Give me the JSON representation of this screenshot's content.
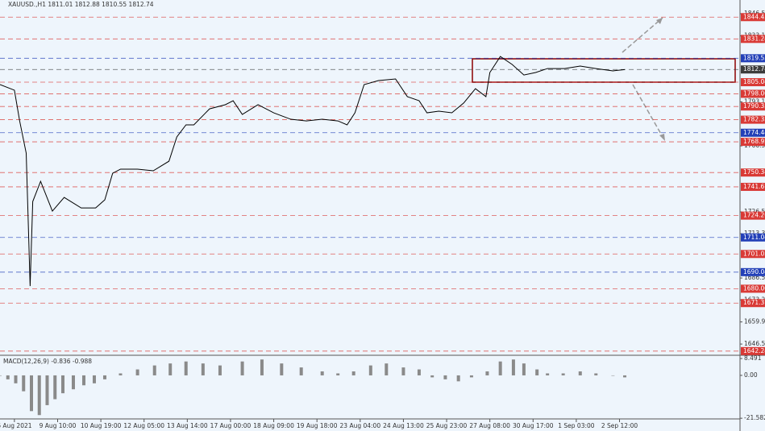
{
  "chart_data": [
    {
      "type": "line",
      "title": "XAUUSD.,H1  1811.01 1812.88 1810.55 1812.74",
      "color": "#000000",
      "x": [
        0,
        11,
        15,
        20,
        23,
        25,
        31,
        40,
        49,
        62,
        73,
        80,
        86,
        92,
        105,
        117,
        129,
        135,
        142,
        148,
        160,
        172,
        178,
        185,
        197,
        209,
        222,
        234,
        246,
        258,
        265,
        271,
        278,
        289,
        302,
        311,
        320,
        326,
        335,
        345,
        354,
        363,
        371,
        374,
        382,
        391,
        400,
        409,
        418,
        431,
        443,
        455,
        468,
        477
      ],
      "values": [
        1803.6,
        1800.2,
        1781.6,
        1762.1,
        1681.6,
        1732.8,
        1745.0,
        1727.0,
        1735.3,
        1728.9,
        1728.9,
        1733.8,
        1749.9,
        1752.4,
        1752.4,
        1751.4,
        1757.2,
        1771.9,
        1779.2,
        1779.2,
        1788.9,
        1791.4,
        1793.8,
        1785.5,
        1791.4,
        1786.5,
        1782.6,
        1781.6,
        1782.6,
        1781.6,
        1779.2,
        1786.5,
        1803.6,
        1806.0,
        1807.0,
        1796.3,
        1793.8,
        1786.5,
        1787.5,
        1786.5,
        1792.4,
        1801.1,
        1796.3,
        1810.9,
        1820.6,
        1815.8,
        1809.4,
        1810.9,
        1813.3,
        1813.3,
        1814.8,
        1813.3,
        1811.9,
        1812.7
      ],
      "xlim": [
        0,
        565
      ],
      "ylim": [
        1640.2,
        1854.8
      ],
      "xticks": [
        {
          "value": 11,
          "label": "6 Aug 2021"
        },
        {
          "value": 44,
          "label": "9 Aug 10:00"
        },
        {
          "value": 77,
          "label": "10 Aug 19:00"
        },
        {
          "value": 110,
          "label": "12 Aug 05:00"
        },
        {
          "value": 143,
          "label": "13 Aug 14:00"
        },
        {
          "value": 176,
          "label": "17 Aug 00:00"
        },
        {
          "value": 209,
          "label": "18 Aug 09:00"
        },
        {
          "value": 242,
          "label": "19 Aug 18:00"
        },
        {
          "value": 275,
          "label": "23 Aug 04:00"
        },
        {
          "value": 308,
          "label": "24 Aug 13:00"
        },
        {
          "value": 341,
          "label": "25 Aug 23:00"
        },
        {
          "value": 374,
          "label": "27 Aug 08:00"
        },
        {
          "value": 407,
          "label": "30 Aug 17:00"
        },
        {
          "value": 440,
          "label": "1 Sep 03:00"
        },
        {
          "value": 473,
          "label": "2 Sep 12:00"
        }
      ],
      "yticks": [
        {
          "value": 1846.5,
          "label": "1846.50"
        },
        {
          "value": 1833.1,
          "label": "1833.10"
        },
        {
          "value": 1793.1,
          "label": "1793.10"
        },
        {
          "value": 1766.5,
          "label": "1766.50"
        },
        {
          "value": 1726.5,
          "label": "1726.50"
        },
        {
          "value": 1713.3,
          "label": "1713.30"
        },
        {
          "value": 1686.5,
          "label": "1686.50"
        },
        {
          "value": 1673.2,
          "label": "1673.20"
        },
        {
          "value": 1659.9,
          "label": "1659.90"
        },
        {
          "value": 1646.5,
          "label": "1646.50"
        }
      ],
      "levels": [
        {
          "value": 1844.43,
          "color": "#d93a36"
        },
        {
          "value": 1831.24,
          "color": "#d93a36"
        },
        {
          "value": 1819.53,
          "color": "#2340b8"
        },
        {
          "value": 1812.74,
          "color": "#3c3c3c"
        },
        {
          "value": 1805.04,
          "color": "#d93a36"
        },
        {
          "value": 1798,
          "label": "1798.00",
          "color": "#d93a36"
        },
        {
          "value": 1790.33,
          "color": "#d93a36"
        },
        {
          "value": 1782.33,
          "color": "#d93a36"
        },
        {
          "value": 1774.44,
          "color": "#2340b8"
        },
        {
          "value": 1768.92,
          "color": "#d93a36"
        },
        {
          "value": 1750.34,
          "color": "#d93a36"
        },
        {
          "value": 1741.67,
          "color": "#d93a36"
        },
        {
          "value": 1724.26,
          "color": "#d93a36"
        },
        {
          "value": 1711.04,
          "color": "#2340b8"
        },
        {
          "value": 1701.03,
          "color": "#d93a36"
        },
        {
          "value": 1690.04,
          "color": "#2340b8"
        },
        {
          "value": 1680,
          "label": "1680.00",
          "color": "#d93a36"
        },
        {
          "value": 1671.31,
          "color": "#d93a36"
        },
        {
          "value": 1642.24,
          "color": "#d93a36"
        }
      ]
    },
    {
      "type": "bar",
      "title": "MACD(12,26,9) -0.836 -0.988",
      "color": "#8a8a8a",
      "x": [
        0,
        6,
        12,
        18,
        24,
        30,
        36,
        42,
        48,
        56,
        64,
        72,
        80,
        92,
        105,
        118,
        130,
        142,
        155,
        168,
        185,
        200,
        215,
        230,
        246,
        258,
        270,
        283,
        295,
        308,
        320,
        330,
        340,
        350,
        360,
        372,
        382,
        392,
        400,
        410,
        418,
        430,
        443,
        455,
        468,
        477
      ],
      "values": [
        0,
        -2,
        -4,
        -8,
        -18,
        -20,
        -15,
        -12,
        -9,
        -7,
        -5,
        -4,
        -2,
        1,
        3,
        5,
        6,
        7,
        6,
        5,
        7,
        8,
        6,
        4,
        2,
        1,
        2,
        5,
        6,
        4,
        3,
        -1,
        -2,
        -3,
        -1,
        2,
        7,
        8,
        6,
        3,
        1,
        1,
        2,
        1,
        0,
        -1
      ],
      "xlim": [
        0,
        565
      ],
      "ylim": [
        -27.2,
        8.5
      ],
      "yticks": [
        8.491,
        {
          "value": 0,
          "label": "0.00"
        },
        -21.582
      ]
    }
  ]
}
